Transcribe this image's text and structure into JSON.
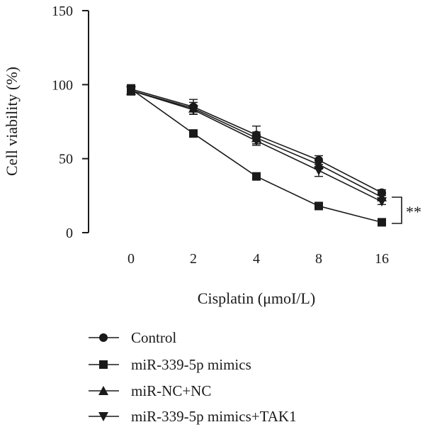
{
  "chart_data": {
    "type": "line",
    "title": "",
    "xlabel": "Cisplatin (μmoI/L)",
    "ylabel": "Cell viability (%)",
    "categories": [
      "0",
      "2",
      "4",
      "8",
      "16"
    ],
    "ylim": [
      0,
      150
    ],
    "yticks": [
      0,
      50,
      100,
      150
    ],
    "grid": false,
    "legend_position": "bottom",
    "significance": "**",
    "series": [
      {
        "name": "Control",
        "marker": "circle",
        "values": [
          97,
          85,
          66,
          49,
          27
        ],
        "errors": [
          3,
          5,
          6,
          3,
          2
        ]
      },
      {
        "name": "miR-339-5p mimics",
        "marker": "square",
        "values": [
          97,
          67,
          38,
          18,
          7
        ],
        "errors": [
          2,
          2,
          2,
          2,
          1
        ]
      },
      {
        "name": "miR-NC+NC",
        "marker": "triangle-up",
        "values": [
          96,
          84,
          64,
          46,
          24
        ],
        "errors": [
          3,
          4,
          4,
          3,
          2
        ]
      },
      {
        "name": "miR-339-5p mimics+TAK1",
        "marker": "triangle-down",
        "values": [
          96,
          83,
          62,
          42,
          21
        ],
        "errors": [
          3,
          3,
          3,
          4,
          2
        ]
      }
    ]
  }
}
